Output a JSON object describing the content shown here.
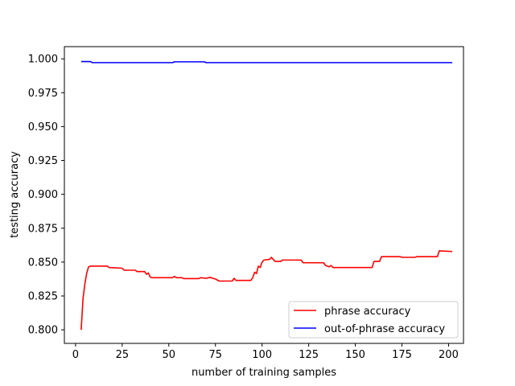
{
  "chart_data": {
    "type": "line",
    "title": "",
    "xlabel": "number of training samples",
    "ylabel": "testing accuracy",
    "xlim": [
      -6,
      208
    ],
    "ylim": [
      0.79,
      1.009
    ],
    "xticks": [
      0,
      25,
      50,
      75,
      100,
      125,
      150,
      175,
      200
    ],
    "xtick_labels": [
      "0",
      "25",
      "50",
      "75",
      "100",
      "125",
      "150",
      "175",
      "200"
    ],
    "yticks": [
      0.8,
      0.825,
      0.85,
      0.875,
      0.9,
      0.925,
      0.95,
      0.975,
      1.0
    ],
    "ytick_labels": [
      "0.800",
      "0.825",
      "0.850",
      "0.875",
      "0.900",
      "0.925",
      "0.950",
      "0.975",
      "1.000"
    ],
    "grid": false,
    "legend_position": "lower-right",
    "series": [
      {
        "name": "phrase accuracy",
        "color": "#ff0000",
        "points": [
          [
            3,
            0.8
          ],
          [
            4,
            0.823
          ],
          [
            5,
            0.834
          ],
          [
            6,
            0.842
          ],
          [
            7,
            0.8465
          ],
          [
            8,
            0.847
          ],
          [
            10,
            0.847
          ],
          [
            17,
            0.847
          ],
          [
            18,
            0.846
          ],
          [
            25,
            0.8455
          ],
          [
            26,
            0.844
          ],
          [
            32,
            0.844
          ],
          [
            33,
            0.843
          ],
          [
            37,
            0.843
          ],
          [
            38,
            0.841
          ],
          [
            39,
            0.842
          ],
          [
            40,
            0.839
          ],
          [
            41,
            0.8385
          ],
          [
            52,
            0.8385
          ],
          [
            53,
            0.8395
          ],
          [
            54,
            0.8385
          ],
          [
            57,
            0.8385
          ],
          [
            58,
            0.8378
          ],
          [
            66,
            0.8378
          ],
          [
            67,
            0.8385
          ],
          [
            70,
            0.838
          ],
          [
            72,
            0.8387
          ],
          [
            75,
            0.8375
          ],
          [
            77,
            0.836
          ],
          [
            84,
            0.836
          ],
          [
            85,
            0.838
          ],
          [
            86,
            0.8365
          ],
          [
            94,
            0.8365
          ],
          [
            95,
            0.8385
          ],
          [
            96,
            0.8425
          ],
          [
            97,
            0.8415
          ],
          [
            98,
            0.847
          ],
          [
            99,
            0.846
          ],
          [
            100,
            0.85
          ],
          [
            101,
            0.8515
          ],
          [
            104,
            0.852
          ],
          [
            105,
            0.8535
          ],
          [
            106,
            0.852
          ],
          [
            107,
            0.8505
          ],
          [
            110,
            0.8505
          ],
          [
            111,
            0.8515
          ],
          [
            121,
            0.8515
          ],
          [
            122,
            0.8495
          ],
          [
            133,
            0.8495
          ],
          [
            134,
            0.8475
          ],
          [
            136,
            0.8465
          ],
          [
            137,
            0.8475
          ],
          [
            138,
            0.846
          ],
          [
            158,
            0.846
          ],
          [
            159,
            0.846
          ],
          [
            160,
            0.8505
          ],
          [
            163,
            0.8505
          ],
          [
            164,
            0.854
          ],
          [
            174,
            0.854
          ],
          [
            175,
            0.8535
          ],
          [
            182,
            0.8535
          ],
          [
            183,
            0.854
          ],
          [
            194,
            0.854
          ],
          [
            195,
            0.8583
          ],
          [
            202,
            0.8578
          ]
        ]
      },
      {
        "name": "out-of-phrase accuracy",
        "color": "#0000ff",
        "points": [
          [
            3,
            0.998
          ],
          [
            8,
            0.998
          ],
          [
            9,
            0.9972
          ],
          [
            52,
            0.9972
          ],
          [
            53,
            0.9978
          ],
          [
            69,
            0.9978
          ],
          [
            70,
            0.9972
          ],
          [
            202,
            0.9972
          ]
        ]
      }
    ]
  }
}
